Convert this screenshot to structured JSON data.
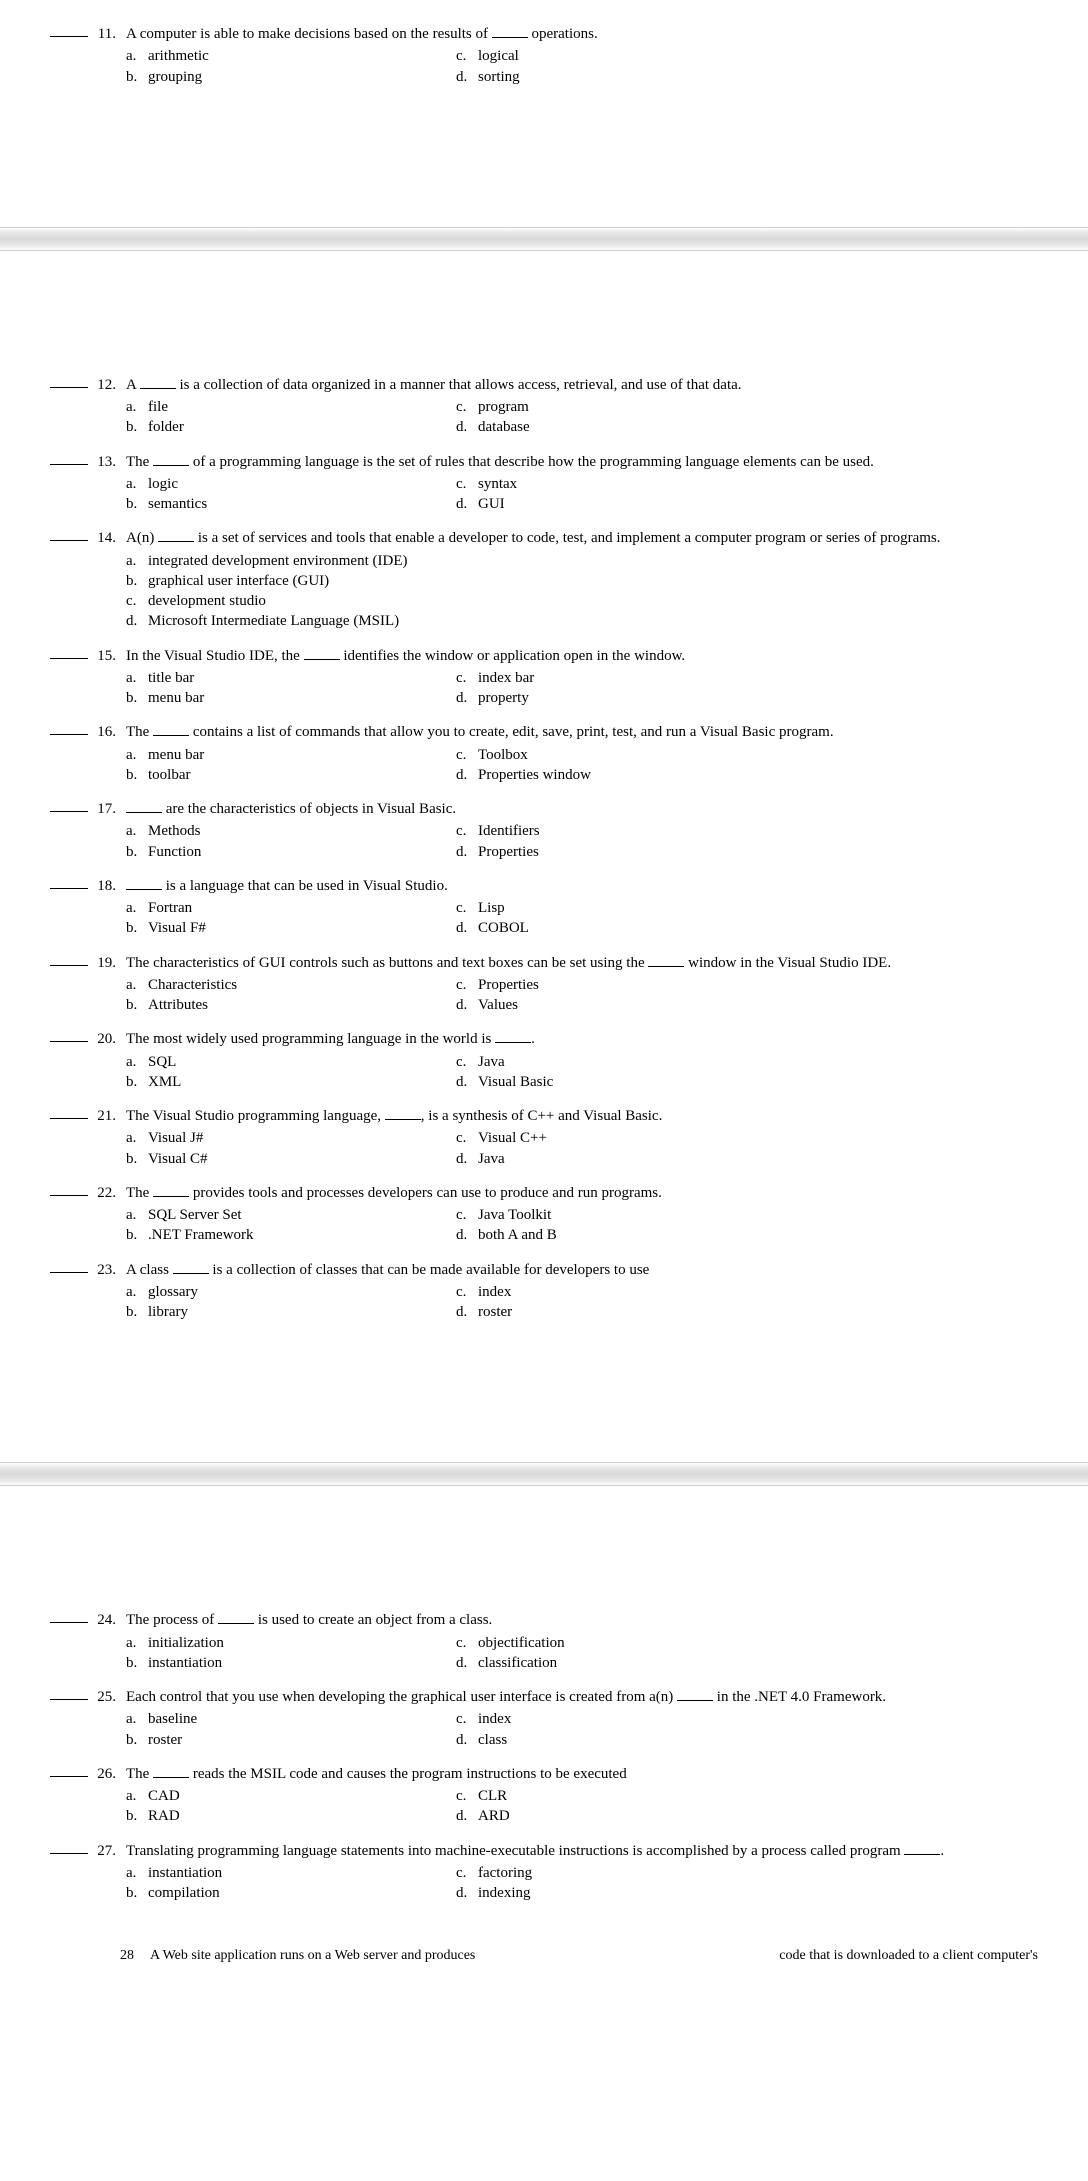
{
  "questions": {
    "q11": {
      "num": "11.",
      "stemPre": "A computer is able to make decisions based on the results of ",
      "stemPost": " operations.",
      "a": "arithmetic",
      "b": "grouping",
      "c": "logical",
      "d": "sorting"
    },
    "q12": {
      "num": "12.",
      "stemPre": "A ",
      "stemPost": " is a collection of data organized in a manner that allows access, retrieval, and use of that data.",
      "a": "file",
      "b": "folder",
      "c": "program",
      "d": "database"
    },
    "q13": {
      "num": "13.",
      "stemPre": "The ",
      "stemPost": " of a programming language is the set of rules that describe how the programming language elements can be used.",
      "a": "logic",
      "b": "semantics",
      "c": "syntax",
      "d": "GUI"
    },
    "q14": {
      "num": "14.",
      "stemPre": "A(n) ",
      "stemPost": " is a set of services and tools that enable a developer to code, test, and implement a computer program or series of programs.",
      "a": "integrated development environment (IDE)",
      "b": "graphical user interface (GUI)",
      "c": "development studio",
      "d": "Microsoft Intermediate Language (MSIL)"
    },
    "q15": {
      "num": "15.",
      "stemPre": "In the Visual Studio IDE, the ",
      "stemPost": " identifies the window or application open in the window.",
      "a": "title bar",
      "b": "menu bar",
      "c": "index bar",
      "d": "property"
    },
    "q16": {
      "num": "16.",
      "stemPre": "The ",
      "stemPost": " contains a list of commands that allow you to create, edit, save, print, test, and run a Visual Basic program.",
      "a": "menu bar",
      "b": "toolbar",
      "c": "Toolbox",
      "d": "Properties window"
    },
    "q17": {
      "num": "17.",
      "stemPre": "",
      "stemPost": " are the characteristics of objects in Visual Basic.",
      "a": "Methods",
      "b": "Function",
      "c": "Identifiers",
      "d": "Properties"
    },
    "q18": {
      "num": "18.",
      "stemPre": "",
      "stemPost": " is a language that can be used in Visual Studio.",
      "a": "Fortran",
      "b": "Visual F#",
      "c": "Lisp",
      "d": "COBOL"
    },
    "q19": {
      "num": "19.",
      "stemPre": "The characteristics of GUI controls such as buttons and text boxes can be set using the ",
      "stemPost": " window in the Visual Studio IDE.",
      "a": "Characteristics",
      "b": "Attributes",
      "c": "Properties",
      "d": "Values"
    },
    "q20": {
      "num": "20.",
      "stemPre": "The most widely used programming language in the world is ",
      "stemPost": ".",
      "a": "SQL",
      "b": "XML",
      "c": "Java",
      "d": "Visual Basic"
    },
    "q21": {
      "num": "21.",
      "stemPre": "The Visual Studio programming language, ",
      "stemPost": ", is a synthesis of C++ and Visual Basic.",
      "a": "Visual J#",
      "b": "Visual C#",
      "c": "Visual C++",
      "d": "Java"
    },
    "q22": {
      "num": "22.",
      "stemPre": "The ",
      "stemPost": " provides tools and processes developers can use to produce and run programs.",
      "a": "SQL Server Set",
      "b": ".NET Framework",
      "c": "Java Toolkit",
      "d": "both A and B"
    },
    "q23": {
      "num": "23.",
      "stemPre": "A class ",
      "stemPost": " is a collection of classes that can be made available for developers to use",
      "a": "glossary",
      "b": "library",
      "c": "index",
      "d": "roster"
    },
    "q24": {
      "num": "24.",
      "stemPre": "The process of ",
      "stemPost": " is used to create an object from a class.",
      "a": "initialization",
      "b": "instantiation",
      "c": "objectification",
      "d": "classification"
    },
    "q25": {
      "num": "25.",
      "stemPre": "Each control that you use when developing the graphical user interface is created from a(n) ",
      "stemPost": " in the .NET 4.0 Framework.",
      "a": "baseline",
      "b": "roster",
      "c": "index",
      "d": "class"
    },
    "q26": {
      "num": "26.",
      "stemPre": "The ",
      "stemPost": " reads the MSIL code and causes the program instructions to be executed",
      "a": "CAD",
      "b": "RAD",
      "c": "CLR",
      "d": "ARD"
    },
    "q27": {
      "num": "27.",
      "stemPre": "Translating programming language statements into machine-executable instructions is accomplished by a process called program ",
      "stemPost": ".",
      "a": "instantiation",
      "b": "compilation",
      "c": "factoring",
      "d": "indexing"
    }
  },
  "letters": {
    "a": "a.",
    "b": "b.",
    "c": "c.",
    "d": "d."
  },
  "cutoff": {
    "num": "28",
    "left": "A Web site application runs on a Web server and produces",
    "right": "code that is downloaded to a client computer's"
  }
}
